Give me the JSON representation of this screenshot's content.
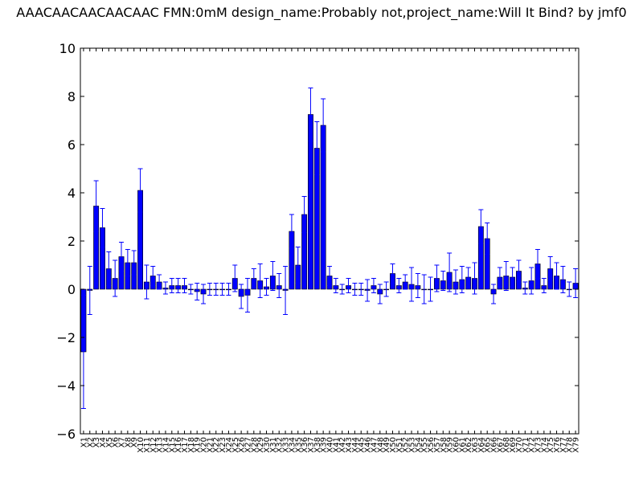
{
  "chart_data": {
    "type": "bar",
    "title": "AAACAACAACAACAAC  FMN:0mM  design_name:Probably not,project_name:Will It Bind? by jmf0",
    "xlabel": "",
    "ylabel": "",
    "ylim": [
      -6,
      10
    ],
    "yticks": [
      -6,
      -4,
      -2,
      0,
      2,
      4,
      6,
      8,
      10
    ],
    "grid": false,
    "bar_color": "#0000ff",
    "error_color": "#0000ff",
    "categories": [
      "X1",
      "X2",
      "X3",
      "X4",
      "X5",
      "X6",
      "X7",
      "X8",
      "X9",
      "X10",
      "X11",
      "X12",
      "X13",
      "X14",
      "X15",
      "X16",
      "X17",
      "X18",
      "X19",
      "X20",
      "X21",
      "X22",
      "X23",
      "X24",
      "X25",
      "X26",
      "X27",
      "X28",
      "X29",
      "X30",
      "X31",
      "X32",
      "X33",
      "X34",
      "X35",
      "X36",
      "X37",
      "X38",
      "X39",
      "X40",
      "X41",
      "X42",
      "X43",
      "X44",
      "X45",
      "X46",
      "X47",
      "X48",
      "X49",
      "X50",
      "X51",
      "X52",
      "X53",
      "X54",
      "X55",
      "X56",
      "X57",
      "X58",
      "X59",
      "X60",
      "X61",
      "X62",
      "X63",
      "X64",
      "X65",
      "X66",
      "X67",
      "X68",
      "X69",
      "X70",
      "X71",
      "X72",
      "X73",
      "X74",
      "X75",
      "X76",
      "X77",
      "X78",
      "X79"
    ],
    "values": [
      -2.6,
      -0.05,
      3.45,
      2.55,
      0.85,
      0.45,
      1.35,
      1.1,
      1.1,
      4.1,
      0.3,
      0.55,
      0.3,
      0.05,
      0.15,
      0.15,
      0.15,
      0.0,
      -0.1,
      -0.2,
      0.0,
      0.0,
      0.0,
      0.0,
      0.45,
      -0.3,
      -0.25,
      0.45,
      0.35,
      0.1,
      0.55,
      0.15,
      -0.05,
      2.4,
      1.0,
      3.1,
      7.25,
      5.85,
      6.8,
      0.55,
      0.15,
      0.0,
      0.15,
      0.0,
      0.0,
      -0.05,
      0.15,
      -0.2,
      0.0,
      0.65,
      0.15,
      0.3,
      0.2,
      0.15,
      0.0,
      0.0,
      0.45,
      0.35,
      0.7,
      0.3,
      0.4,
      0.5,
      0.45,
      2.6,
      2.1,
      -0.2,
      0.5,
      0.55,
      0.5,
      0.75,
      0.05,
      0.35,
      1.05,
      0.15,
      0.85,
      0.55,
      0.4,
      0.0,
      0.25
    ],
    "errors": [
      2.35,
      1.0,
      1.05,
      0.8,
      0.7,
      0.75,
      0.6,
      0.55,
      0.5,
      0.9,
      0.7,
      0.4,
      0.3,
      0.25,
      0.3,
      0.3,
      0.3,
      0.2,
      0.35,
      0.4,
      0.25,
      0.25,
      0.25,
      0.25,
      0.55,
      0.5,
      0.7,
      0.4,
      0.7,
      0.35,
      0.6,
      0.5,
      1.0,
      0.7,
      0.75,
      0.75,
      1.1,
      1.1,
      1.1,
      0.4,
      0.3,
      0.2,
      0.3,
      0.25,
      0.25,
      0.45,
      0.3,
      0.4,
      0.3,
      0.4,
      0.3,
      0.3,
      0.7,
      0.5,
      0.6,
      0.5,
      0.55,
      0.4,
      0.8,
      0.5,
      0.55,
      0.4,
      0.65,
      0.7,
      0.65,
      0.4,
      0.4,
      0.6,
      0.4,
      0.45,
      0.25,
      0.55,
      0.6,
      0.3,
      0.5,
      0.55,
      0.55,
      0.3,
      0.6
    ]
  }
}
